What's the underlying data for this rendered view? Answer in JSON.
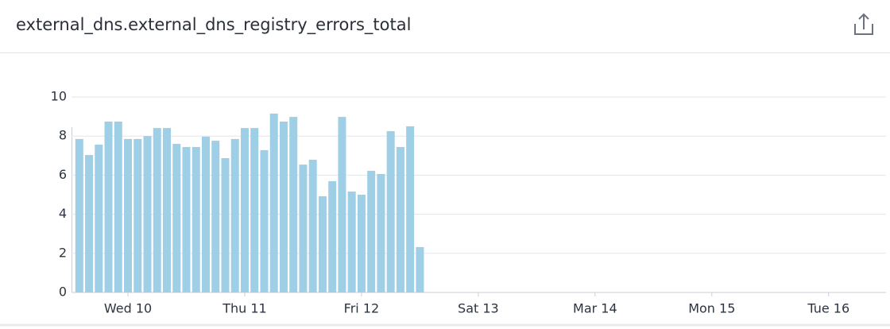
{
  "chart_data": {
    "type": "bar",
    "title": "external_dns.external_dns_registry_errors_total",
    "x": [
      -10,
      -8,
      -6,
      -4,
      -2,
      0,
      2,
      4,
      6,
      8,
      10,
      12,
      14,
      16,
      18,
      20,
      22,
      24,
      26,
      28,
      30,
      32,
      34,
      36,
      38,
      40,
      42,
      44,
      46,
      48,
      50,
      52,
      54,
      56,
      58,
      60
    ],
    "values": [
      7.85,
      7.03,
      7.56,
      8.74,
      8.74,
      7.85,
      7.85,
      8.0,
      8.41,
      8.41,
      7.6,
      7.44,
      7.44,
      7.97,
      7.76,
      6.87,
      7.85,
      8.41,
      8.41,
      7.28,
      9.15,
      8.74,
      8.98,
      6.54,
      6.79,
      4.92,
      5.69,
      8.98,
      5.16,
      5.0,
      6.22,
      6.06,
      8.25,
      7.44,
      8.5,
      2.32
    ],
    "color": "#9ecfe6",
    "xlim": [
      -11.6,
      155.8
    ],
    "xticks": [
      {
        "value": 0,
        "label": "Wed 10"
      },
      {
        "value": 24,
        "label": "Thu 11"
      },
      {
        "value": 48,
        "label": "Fri 12"
      },
      {
        "value": 72,
        "label": "Sat 13"
      },
      {
        "value": 96,
        "label": "Mar 14"
      },
      {
        "value": 120,
        "label": "Mon 15"
      },
      {
        "value": 144,
        "label": "Tue 16"
      }
    ],
    "ylim": [
      0,
      10
    ],
    "yticks": [
      0,
      2,
      4,
      6,
      8,
      10
    ],
    "grid": true
  }
}
